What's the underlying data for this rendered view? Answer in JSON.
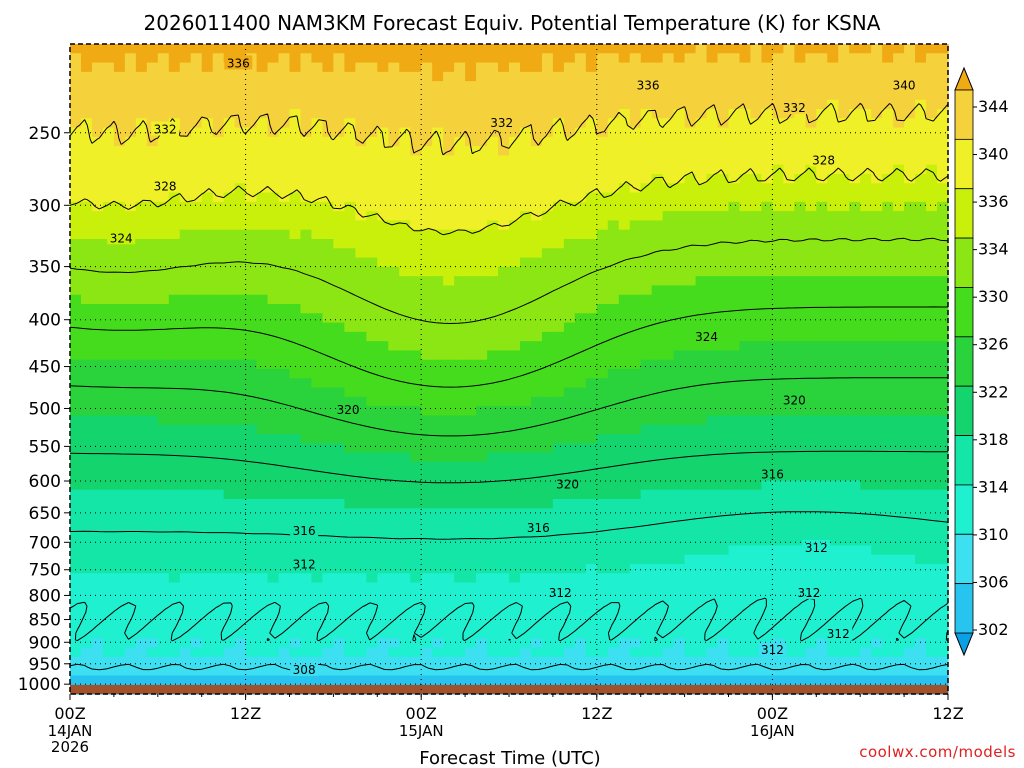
{
  "chart_data": {
    "type": "heatmap",
    "title": "2026011400 NAM3KM Forecast Equiv. Potential Temperature (K) for KSNA",
    "xlabel": "Forecast Time (UTC)",
    "ylabel": "",
    "x_range_hours": [
      0,
      60
    ],
    "x_ticks": [
      {
        "hour": 0,
        "label": "00Z",
        "sub": "14JAN",
        "sub2": "2026"
      },
      {
        "hour": 12,
        "label": "12Z",
        "sub": "",
        "sub2": ""
      },
      {
        "hour": 24,
        "label": "00Z",
        "sub": "15JAN",
        "sub2": ""
      },
      {
        "hour": 36,
        "label": "12Z",
        "sub": "",
        "sub2": ""
      },
      {
        "hour": 48,
        "label": "00Z",
        "sub": "16JAN",
        "sub2": ""
      },
      {
        "hour": 60,
        "label": "12Z",
        "sub": "",
        "sub2": ""
      }
    ],
    "y_axis": "pressure (hPa)",
    "y_range_hpa": [
      1025,
      200
    ],
    "y_ticks": [
      "250",
      "300",
      "350",
      "400",
      "450",
      "500",
      "550",
      "600",
      "650",
      "700",
      "750",
      "800",
      "850",
      "900",
      "950",
      "1000"
    ],
    "colorbar": {
      "labels": [
        "302",
        "306",
        "310",
        "314",
        "318",
        "322",
        "326",
        "330",
        "334",
        "336",
        "340",
        "344"
      ],
      "levels": [
        302,
        306,
        310,
        314,
        318,
        322,
        326,
        330,
        334,
        336,
        340,
        344
      ],
      "colors": [
        "#0aa0e6",
        "#28c4f0",
        "#3ce0f0",
        "#1ef0d0",
        "#14e6a8",
        "#14d46e",
        "#2ad23c",
        "#46dc1e",
        "#8ce614",
        "#c8f00a",
        "#f0f028",
        "#f5d23c",
        "#f0aa14"
      ]
    },
    "contour_levels": [
      308,
      312,
      316,
      320,
      324,
      328,
      332,
      336,
      340
    ],
    "contour_labels": [
      {
        "text": "336",
        "hour": 11.5,
        "hpa": 210
      },
      {
        "text": "336",
        "hour": 39.5,
        "hpa": 222
      },
      {
        "text": "340",
        "hour": 57.0,
        "hpa": 222
      },
      {
        "text": "332",
        "hour": 6.5,
        "hpa": 248
      },
      {
        "text": "332",
        "hour": 29.5,
        "hpa": 244
      },
      {
        "text": "332",
        "hour": 49.5,
        "hpa": 235
      },
      {
        "text": "328",
        "hour": 6.5,
        "hpa": 286
      },
      {
        "text": "328",
        "hour": 51.5,
        "hpa": 268
      },
      {
        "text": "324",
        "hour": 3.5,
        "hpa": 326
      },
      {
        "text": "324",
        "hour": 43.5,
        "hpa": 418
      },
      {
        "text": "320",
        "hour": 19.0,
        "hpa": 502
      },
      {
        "text": "320",
        "hour": 49.5,
        "hpa": 490
      },
      {
        "text": "320",
        "hour": 34.0,
        "hpa": 605
      },
      {
        "text": "316",
        "hour": 16.0,
        "hpa": 680
      },
      {
        "text": "316",
        "hour": 32.0,
        "hpa": 675
      },
      {
        "text": "316",
        "hour": 48.0,
        "hpa": 590
      },
      {
        "text": "312",
        "hour": 16.0,
        "hpa": 740
      },
      {
        "text": "312",
        "hour": 33.5,
        "hpa": 795
      },
      {
        "text": "312",
        "hour": 51.0,
        "hpa": 710
      },
      {
        "text": "312",
        "hour": 50.5,
        "hpa": 795
      },
      {
        "text": "312",
        "hour": 52.5,
        "hpa": 882
      },
      {
        "text": "312",
        "hour": 48.0,
        "hpa": 918
      },
      {
        "text": "308",
        "hour": 16.0,
        "hpa": 965
      }
    ],
    "ground_color": "#a0522d"
  },
  "footer": {
    "credit": "coolwx.com/models"
  }
}
